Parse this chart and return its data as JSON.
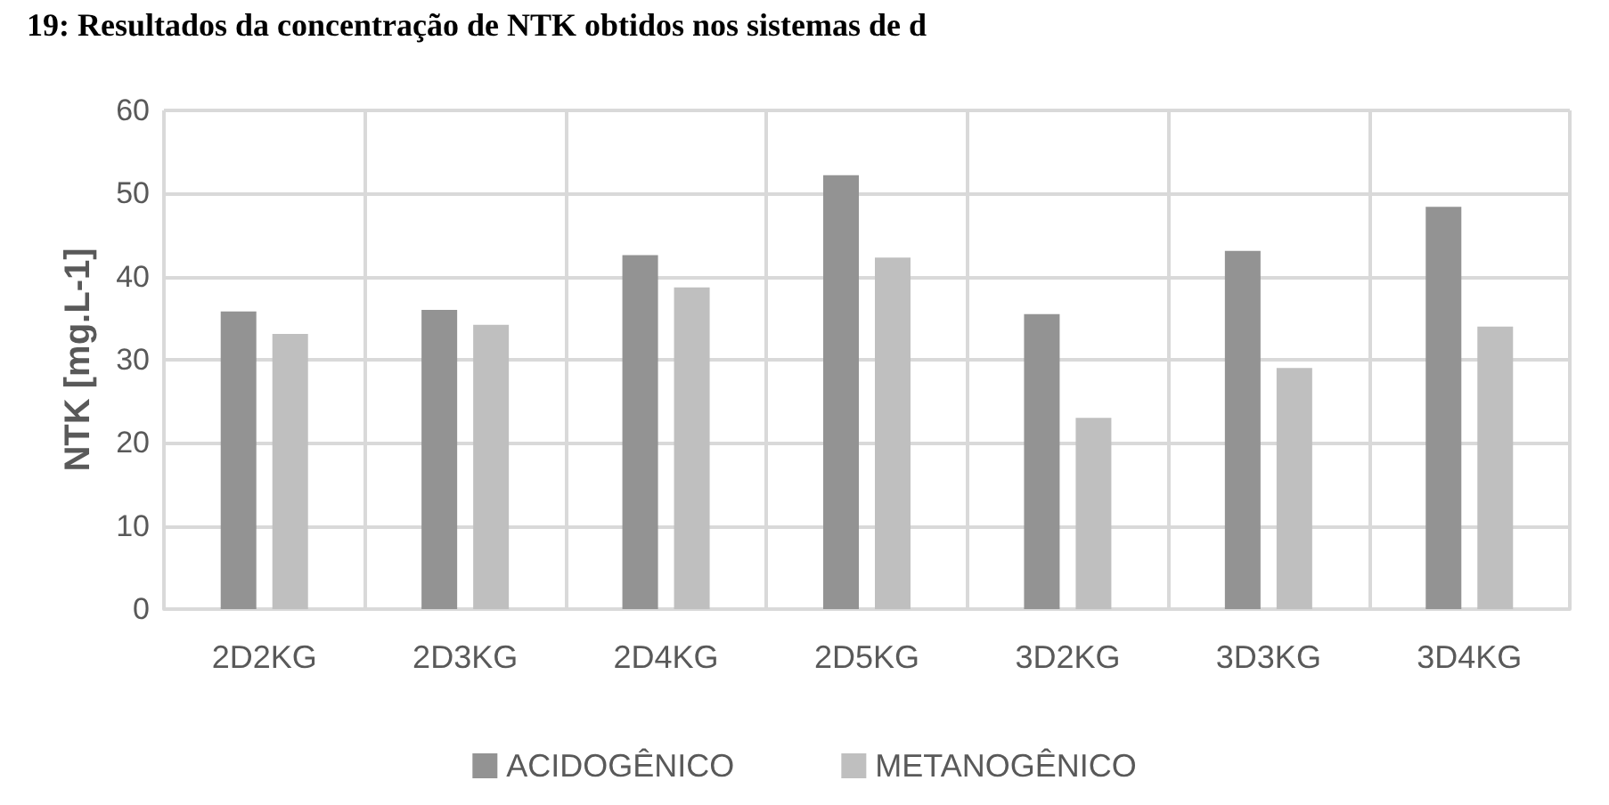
{
  "chart_data": {
    "type": "bar",
    "title": "19: Resultados da concentração de NTK obtidos nos sistemas de d",
    "ylabel": "NTK [mg.L-1]",
    "categories": [
      "2D2KG",
      "2D3KG",
      "2D4KG",
      "2D5KG",
      "3D2KG",
      "3D3KG",
      "3D4KG"
    ],
    "series": [
      {
        "name": "ACIDOGÊNICO",
        "color": "#939393",
        "values": [
          35.8,
          36,
          42.6,
          52.2,
          35.5,
          43.1,
          48.4
        ]
      },
      {
        "name": "METANOGÊNICO",
        "color": "#bfbfbf",
        "values": [
          33.1,
          34.2,
          38.7,
          42.3,
          23,
          29,
          34
        ]
      }
    ],
    "ylim": [
      0,
      60
    ],
    "yticks": [
      0,
      10,
      20,
      30,
      40,
      50,
      60
    ],
    "grid": true,
    "legend": "bottom"
  }
}
